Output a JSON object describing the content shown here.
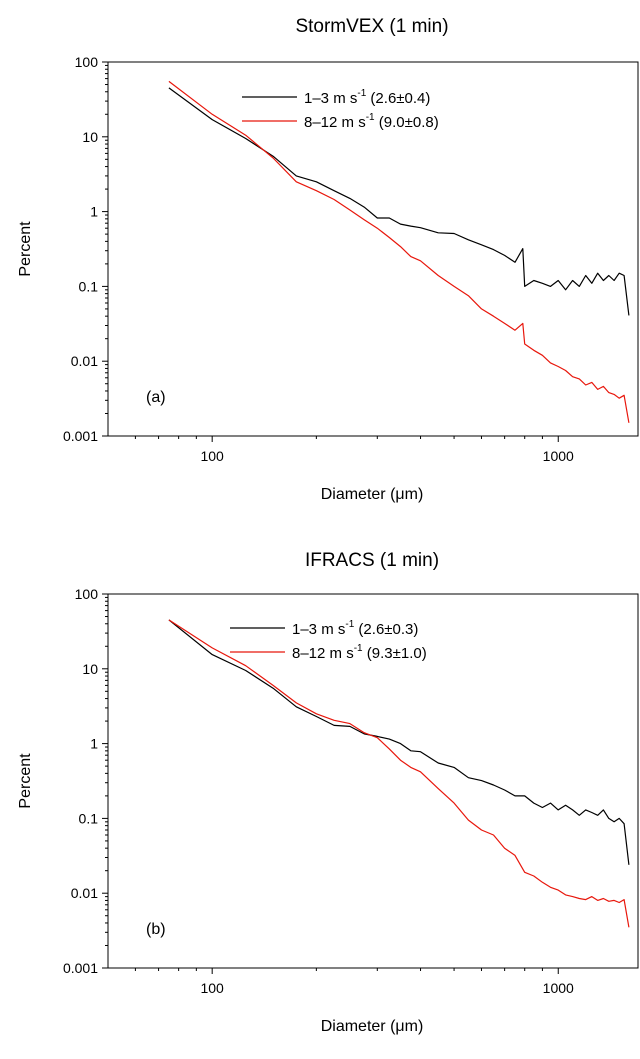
{
  "chart_data": [
    {
      "type": "line",
      "title": "StormVEX (1 min)",
      "xlabel": "Diameter (μm)",
      "ylabel": "Percent",
      "panel_label": "(a)",
      "x_scale": "log",
      "y_scale": "log",
      "xlim": [
        50,
        1700
      ],
      "ylim": [
        0.001,
        100
      ],
      "x_ticks": [
        100,
        1000
      ],
      "x_tick_labels": [
        "100",
        "1000"
      ],
      "y_ticks": [
        0.001,
        0.01,
        0.1,
        1,
        10,
        100
      ],
      "y_tick_labels": [
        "0.001",
        "0.01",
        "0.1",
        "1",
        "10",
        "100"
      ],
      "grid": false,
      "legend_position": "top-right",
      "series": [
        {
          "name": "1–3 m s-1 (2.6±0.4)",
          "legend_main": "1–3 m s",
          "legend_sup": "-1",
          "legend_rest": " (2.6±0.4)",
          "color": "#000000",
          "x": [
            75,
            100,
            125,
            150,
            175,
            200,
            225,
            250,
            275,
            300,
            325,
            350,
            375,
            400,
            450,
            500,
            550,
            600,
            650,
            700,
            750,
            790,
            800,
            850,
            900,
            950,
            1000,
            1050,
            1100,
            1150,
            1200,
            1250,
            1300,
            1350,
            1400,
            1450,
            1500,
            1550,
            1600
          ],
          "y": [
            45,
            17,
            9.5,
            5.5,
            3.0,
            2.5,
            1.9,
            1.5,
            1.15,
            0.82,
            0.82,
            0.68,
            0.64,
            0.61,
            0.52,
            0.51,
            0.42,
            0.36,
            0.31,
            0.26,
            0.21,
            0.32,
            0.1,
            0.12,
            0.11,
            0.1,
            0.12,
            0.09,
            0.12,
            0.1,
            0.14,
            0.11,
            0.15,
            0.12,
            0.14,
            0.12,
            0.15,
            0.14,
            0.041
          ]
        },
        {
          "name": "8–12 m s-1 (9.0±0.8)",
          "legend_main": "8–12 m s",
          "legend_sup": "-1",
          "legend_rest": " (9.0±0.8)",
          "color": "#e8170c",
          "x": [
            75,
            100,
            125,
            150,
            175,
            200,
            225,
            250,
            275,
            300,
            325,
            350,
            375,
            400,
            450,
            500,
            550,
            600,
            650,
            700,
            750,
            790,
            800,
            850,
            900,
            950,
            1000,
            1050,
            1100,
            1150,
            1200,
            1250,
            1300,
            1350,
            1400,
            1450,
            1500,
            1550,
            1600
          ],
          "y": [
            55,
            20,
            10.5,
            5.2,
            2.5,
            1.9,
            1.45,
            1.05,
            0.78,
            0.6,
            0.45,
            0.34,
            0.25,
            0.22,
            0.14,
            0.1,
            0.075,
            0.05,
            0.04,
            0.032,
            0.026,
            0.032,
            0.017,
            0.014,
            0.012,
            0.0095,
            0.0085,
            0.0075,
            0.0062,
            0.0058,
            0.0048,
            0.0052,
            0.0042,
            0.0046,
            0.0038,
            0.0036,
            0.0032,
            0.0035,
            0.0015
          ]
        }
      ]
    },
    {
      "type": "line",
      "title": "IFRACS (1 min)",
      "xlabel": "Diameter (μm)",
      "ylabel": "Percent",
      "panel_label": "(b)",
      "x_scale": "log",
      "y_scale": "log",
      "xlim": [
        50,
        1700
      ],
      "ylim": [
        0.001,
        100
      ],
      "x_ticks": [
        100,
        1000
      ],
      "x_tick_labels": [
        "100",
        "1000"
      ],
      "y_ticks": [
        0.001,
        0.01,
        0.1,
        1,
        10,
        100
      ],
      "y_tick_labels": [
        "0.001",
        "0.01",
        "0.1",
        "1",
        "10",
        "100"
      ],
      "grid": false,
      "legend_position": "top-right",
      "series": [
        {
          "name": "1–3 m s-1 (2.6±0.3)",
          "legend_main": "1–3 m s",
          "legend_sup": "-1",
          "legend_rest": " (2.6±0.3)",
          "color": "#000000",
          "x": [
            75,
            100,
            125,
            150,
            175,
            200,
            225,
            250,
            275,
            300,
            325,
            350,
            375,
            400,
            450,
            500,
            550,
            600,
            650,
            700,
            750,
            800,
            850,
            900,
            950,
            1000,
            1050,
            1100,
            1150,
            1200,
            1250,
            1300,
            1350,
            1400,
            1450,
            1500,
            1550,
            1600
          ],
          "y": [
            45,
            15.5,
            9.5,
            5.5,
            3.1,
            2.3,
            1.75,
            1.7,
            1.35,
            1.25,
            1.15,
            1.0,
            0.8,
            0.78,
            0.55,
            0.48,
            0.35,
            0.32,
            0.28,
            0.24,
            0.2,
            0.2,
            0.16,
            0.14,
            0.16,
            0.13,
            0.15,
            0.13,
            0.11,
            0.13,
            0.12,
            0.11,
            0.13,
            0.1,
            0.09,
            0.1,
            0.085,
            0.024
          ]
        },
        {
          "name": "8–12 m s-1 (9.3±1.0)",
          "legend_main": "8–12 m s",
          "legend_sup": "-1",
          "legend_rest": " (9.3±1.0)",
          "color": "#e8170c",
          "x": [
            75,
            100,
            125,
            150,
            175,
            200,
            225,
            250,
            275,
            300,
            325,
            350,
            375,
            400,
            450,
            500,
            550,
            600,
            650,
            700,
            750,
            800,
            850,
            900,
            950,
            1000,
            1050,
            1100,
            1150,
            1200,
            1250,
            1300,
            1350,
            1400,
            1450,
            1500,
            1550,
            1600
          ],
          "y": [
            45,
            19,
            11,
            6,
            3.5,
            2.5,
            2.05,
            1.85,
            1.4,
            1.2,
            0.85,
            0.6,
            0.48,
            0.42,
            0.25,
            0.16,
            0.095,
            0.07,
            0.06,
            0.04,
            0.032,
            0.019,
            0.017,
            0.014,
            0.012,
            0.011,
            0.0095,
            0.009,
            0.0085,
            0.0082,
            0.009,
            0.008,
            0.0085,
            0.0078,
            0.008,
            0.0075,
            0.0082,
            0.0035
          ]
        }
      ]
    }
  ]
}
